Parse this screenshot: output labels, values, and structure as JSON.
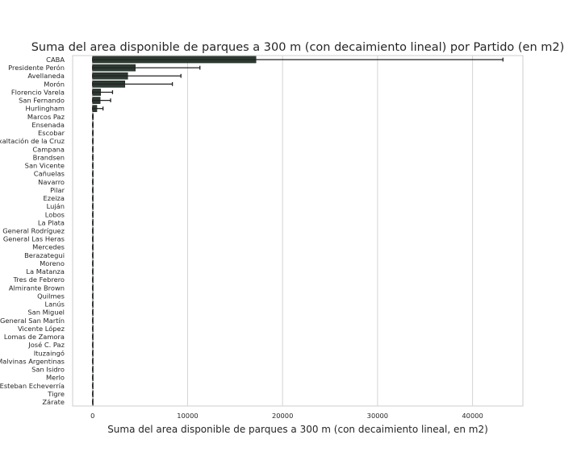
{
  "chart_data": {
    "type": "bar",
    "orientation": "horizontal",
    "title": "Suma del area disponible de parques a 300 m (con decaimiento lineal) por Partido (en m2)",
    "xlabel": "Suma del area disponible de parques a 300 m (con decaimiento lineal, en m2)",
    "ylabel": "",
    "xlim": [
      -2100,
      45300
    ],
    "xticks": [
      0,
      10000,
      20000,
      30000,
      40000
    ],
    "xtick_labels": [
      "0",
      "10000",
      "20000",
      "30000",
      "40000"
    ],
    "grid": "vertical",
    "bar_color": "#2e3b33",
    "categories": [
      "CABA",
      "Presidente Perón",
      "Avellaneda",
      "Morón",
      "Florencio Varela",
      "San Fernando",
      "Hurlingham",
      "Marcos Paz",
      "Ensenada",
      "Escobar",
      "Exaltación de la Cruz",
      "Campana",
      "Brandsen",
      "San Vicente",
      "Cañuelas",
      "Navarro",
      "Pilar",
      "Ezeiza",
      "Luján",
      "Lobos",
      "La Plata",
      "General Rodríguez",
      "General Las Heras",
      "Mercedes",
      "Berazategui",
      "Moreno",
      "La Matanza",
      "Tres de Febrero",
      "Almirante Brown",
      "Quilmes",
      "Lanús",
      "San Miguel",
      "General San Martín",
      "Vicente López",
      "Lomas de Zamora",
      "José C. Paz",
      "Ituzaingó",
      "Malvinas Argentinas",
      "San Isidro",
      "Merlo",
      "Esteban Echeverría",
      "Tigre",
      "Zárate"
    ],
    "values": [
      17200,
      4500,
      3700,
      3400,
      850,
      800,
      450,
      20,
      15,
      15,
      12,
      12,
      10,
      10,
      10,
      10,
      8,
      8,
      8,
      8,
      6,
      6,
      6,
      6,
      5,
      5,
      5,
      4,
      4,
      4,
      4,
      3,
      3,
      3,
      3,
      3,
      2,
      2,
      2,
      2,
      2,
      2,
      2
    ],
    "error_low": [
      0,
      0,
      0,
      0,
      0,
      0,
      0,
      0,
      0,
      0,
      0,
      0,
      0,
      0,
      0,
      0,
      0,
      0,
      0,
      0,
      0,
      0,
      0,
      0,
      0,
      0,
      0,
      0,
      0,
      0,
      0,
      0,
      0,
      0,
      0,
      0,
      0,
      0,
      0,
      0,
      0,
      0,
      0
    ],
    "error_high": [
      43200,
      11300,
      9300,
      8400,
      2100,
      1900,
      1100,
      60,
      50,
      50,
      40,
      40,
      35,
      35,
      30,
      30,
      25,
      25,
      25,
      25,
      20,
      20,
      20,
      20,
      15,
      15,
      15,
      15,
      12,
      12,
      12,
      10,
      10,
      10,
      10,
      10,
      8,
      8,
      8,
      8,
      8,
      8,
      8
    ]
  }
}
